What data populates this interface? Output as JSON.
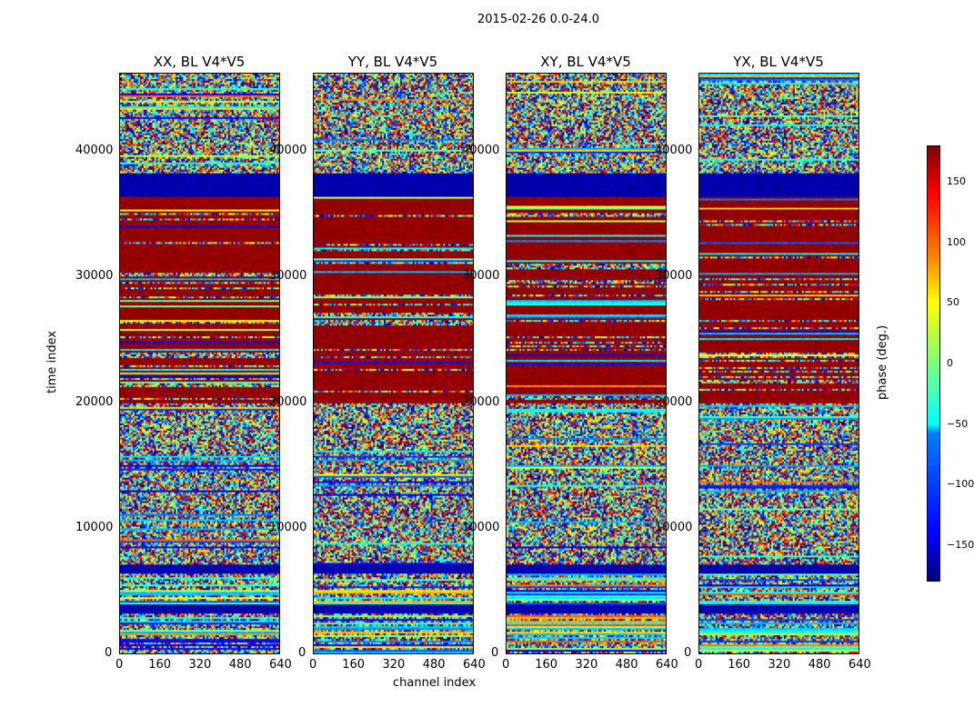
{
  "suptitle": "2015-02-26 0.0-24.0",
  "chart_data": {
    "type": "heatmap",
    "panels": [
      {
        "title": "XX, BL V4*V5"
      },
      {
        "title": "YY, BL V4*V5"
      },
      {
        "title": "XY, BL V4*V5"
      },
      {
        "title": "YX, BL V4*V5"
      }
    ],
    "xlabel": "channel index",
    "ylabel": "time index",
    "xlim": [
      0,
      640
    ],
    "ylim": [
      0,
      46300
    ],
    "xticks": [
      "0",
      "160",
      "320",
      "480",
      "640"
    ],
    "yticks": [
      "0",
      "10000",
      "20000",
      "30000",
      "40000"
    ],
    "colorbar": {
      "label": "phase (deg.)",
      "range": [
        -180,
        180
      ],
      "ticks": [
        "150",
        "100",
        "50",
        "0",
        "−50",
        "−100",
        "−150"
      ],
      "tick_values": [
        150,
        100,
        50,
        0,
        -50,
        -100,
        -150
      ],
      "colormap": "jet"
    },
    "bands": [
      {
        "from": 0,
        "to": 3300,
        "pattern": "striped-noise"
      },
      {
        "from": 3300,
        "to": 4000,
        "pattern": "blue"
      },
      {
        "from": 4000,
        "to": 6500,
        "pattern": "striped-noise"
      },
      {
        "from": 6500,
        "to": 7100,
        "pattern": "blue"
      },
      {
        "from": 7100,
        "to": 10800,
        "pattern": "noise"
      },
      {
        "from": 10800,
        "to": 20000,
        "pattern": "noise"
      },
      {
        "from": 20000,
        "to": 36500,
        "pattern": "red"
      },
      {
        "from": 36500,
        "to": 38400,
        "pattern": "blue"
      },
      {
        "from": 38400,
        "to": 46300,
        "pattern": "noise"
      }
    ]
  }
}
